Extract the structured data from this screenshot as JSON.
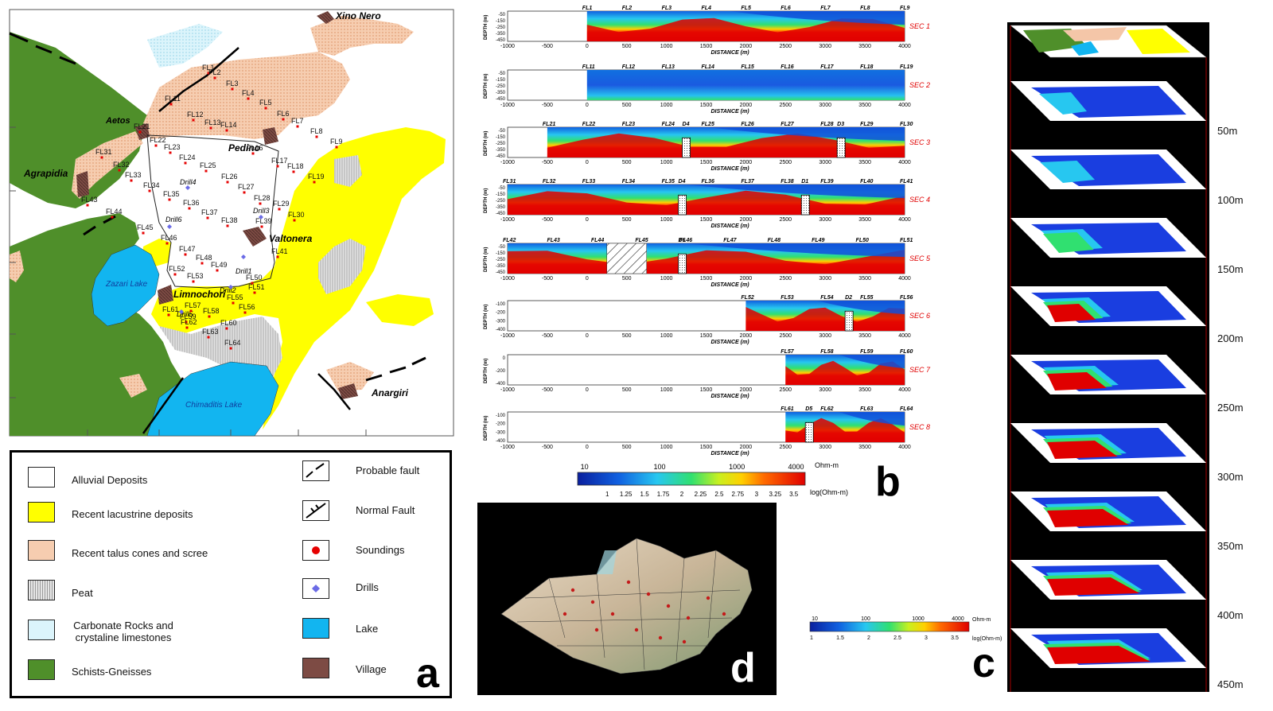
{
  "panel_a": {
    "letter": "a",
    "places": {
      "xino_nero": "Xino Nero",
      "aetos": "Aetos",
      "agrapidia": "Agrapidia",
      "pedino": "Pedino",
      "valtonera": "Valtonera",
      "limnochori": "Limnochori",
      "anargiri": "Anargiri",
      "zazari_lake": "Zazari Lake",
      "chimaditis_lake": "Chimaditis Lake"
    },
    "drills": [
      "Drill4",
      "Drill3",
      "Drill6",
      "Drill1",
      "Drill2",
      "Drill5"
    ],
    "soundings": [
      "FL1",
      "FL2",
      "FL3",
      "FL4",
      "FL5",
      "FL6",
      "FL7",
      "FL8",
      "FL9",
      "FL11",
      "FL12",
      "FL13",
      "FL14",
      "FL16",
      "FL17",
      "FL18",
      "FL19",
      "FL21",
      "FL22",
      "FL23",
      "FL24",
      "FL25",
      "FL26",
      "FL27",
      "FL28",
      "FL29",
      "FL30",
      "FL31",
      "FL32",
      "FL33",
      "FL34",
      "FL35",
      "FL36",
      "FL37",
      "FL38",
      "FL39",
      "FL41",
      "FL43",
      "FL44",
      "FL45",
      "FL46",
      "FL47",
      "FL48",
      "FL49",
      "FL50",
      "FL51",
      "FL52",
      "FL53",
      "FL55",
      "FL56",
      "FL57",
      "FL58",
      "FL59",
      "FL60",
      "FL61",
      "FL62",
      "FL63",
      "FL64"
    ],
    "colors": {
      "alluvial": "#ffffff",
      "lacustrine": "#ffff00",
      "talus": "#f4c6a8",
      "peat": "#d9d9d9",
      "carbonate": "#d8f4fb",
      "schists": "#4f8f2a",
      "lake": "#12b5f0",
      "village": "#7a4a44",
      "soundings": "#e60000",
      "drills": "#6b6be6"
    }
  },
  "legend": {
    "left": [
      {
        "label": "Alluvial Deposits",
        "icon": "alluvial-swatch"
      },
      {
        "label": "Recent lacustrine deposits",
        "icon": "lacustrine-swatch"
      },
      {
        "label": "Recent talus cones and scree",
        "icon": "talus-swatch"
      },
      {
        "label": "Peat",
        "icon": "peat-swatch"
      },
      {
        "label": "Carbonate Rocks and crystaline limestones",
        "icon": "carbonate-swatch"
      },
      {
        "label": "Schists-Gneisses",
        "icon": "schists-swatch"
      }
    ],
    "right": [
      {
        "label": "Probable fault",
        "icon": "probable-fault-icon"
      },
      {
        "label": "Normal Fault",
        "icon": "normal-fault-icon"
      },
      {
        "label": "Soundings",
        "icon": "sounding-dot-icon"
      },
      {
        "label": "Drills",
        "icon": "drill-diamond-icon"
      },
      {
        "label": "Lake",
        "icon": "lake-swatch"
      },
      {
        "label": "Village",
        "icon": "village-swatch"
      }
    ]
  },
  "panel_b": {
    "letter": "b",
    "xlabel": "DISTANCE (m)",
    "ylabel": "DEPTH (m)",
    "x_ticks": [
      "-1000",
      "-500",
      "0",
      "500",
      "1000",
      "1500",
      "2000",
      "2500",
      "3000",
      "3500",
      "4000"
    ],
    "sections": [
      {
        "name": "SEC 1",
        "stations": [
          "FL1",
          "FL2",
          "FL3",
          "FL4",
          "FL5",
          "FL6",
          "FL7",
          "FL8",
          "FL9"
        ],
        "drills": [],
        "depth_ticks": [
          "-50",
          "-150",
          "-250",
          "-350",
          "-450"
        ],
        "start": 0
      },
      {
        "name": "SEC 2",
        "stations": [
          "FL11",
          "FL12",
          "FL13",
          "FL14",
          "FL15",
          "FL16",
          "FL17",
          "FL18",
          "FL19"
        ],
        "drills": [],
        "depth_ticks": [
          "-50",
          "-150",
          "-250",
          "-350",
          "-450"
        ],
        "start": 0
      },
      {
        "name": "SEC 3",
        "stations": [
          "FL21",
          "FL22",
          "FL23",
          "FL24",
          "FL25",
          "FL26",
          "FL27",
          "FL28",
          "FL29",
          "FL30"
        ],
        "drills": [
          "D4",
          "D3"
        ],
        "depth_ticks": [
          "-50",
          "-150",
          "-250",
          "-350",
          "-450"
        ],
        "start": -500
      },
      {
        "name": "SEC 4",
        "stations": [
          "FL31",
          "FL32",
          "FL33",
          "FL34",
          "FL35",
          "FL36",
          "FL37",
          "FL38",
          "FL39",
          "FL40",
          "FL41"
        ],
        "drills": [
          "D4",
          "D1"
        ],
        "depth_ticks": [
          "-50",
          "-150",
          "-250",
          "-350",
          "-450"
        ],
        "start": -1000
      },
      {
        "name": "SEC 5",
        "stations": [
          "FL42",
          "FL43",
          "FL44",
          "FL45",
          "FL46",
          "FL47",
          "FL48",
          "FL49",
          "FL50",
          "FL51"
        ],
        "drills": [
          "D6"
        ],
        "depth_ticks": [
          "-50",
          "-150",
          "-250",
          "-350",
          "-450"
        ],
        "start": -1000
      },
      {
        "name": "SEC 6",
        "stations": [
          "FL52",
          "FL53",
          "FL54",
          "FL55",
          "FL56"
        ],
        "drills": [
          "D2"
        ],
        "depth_ticks": [
          "-100",
          "-200",
          "-300",
          "-400"
        ],
        "start": 2000
      },
      {
        "name": "SEC 7",
        "stations": [
          "FL57",
          "FL58",
          "FL59",
          "FL60"
        ],
        "drills": [],
        "depth_ticks": [
          "0",
          "-200",
          "-400"
        ],
        "start": 2500
      },
      {
        "name": "SEC 8",
        "stations": [
          "FL61",
          "FL62",
          "FL63",
          "FL64"
        ],
        "drills": [
          "D5"
        ],
        "depth_ticks": [
          "-100",
          "-200",
          "-300",
          "-400"
        ],
        "start": 2500
      }
    ],
    "colorbar": {
      "unit_top": "Ohm-m",
      "unit_bottom": "log(Ohm-m)",
      "top_ticks": [
        "10",
        "100",
        "1000",
        "4000"
      ],
      "bottom_ticks": [
        "1",
        "1.25",
        "1.5",
        "1.75",
        "2",
        "2.25",
        "2.5",
        "2.75",
        "3",
        "3.25",
        "3.5"
      ]
    }
  },
  "panel_c": {
    "letter": "c",
    "depth_labels": [
      "50m",
      "100m",
      "150m",
      "200m",
      "250m",
      "300m",
      "350m",
      "400m",
      "450m"
    ],
    "colorbar": {
      "unit_top": "Ohm-m",
      "unit_bottom": "log(Ohm-m)",
      "top_ticks": [
        "10",
        "100",
        "1000",
        "4000"
      ],
      "bottom_ticks": [
        "1",
        "1.5",
        "2",
        "2.5",
        "3",
        "3.5"
      ]
    }
  },
  "panel_d": {
    "letter": "d"
  }
}
